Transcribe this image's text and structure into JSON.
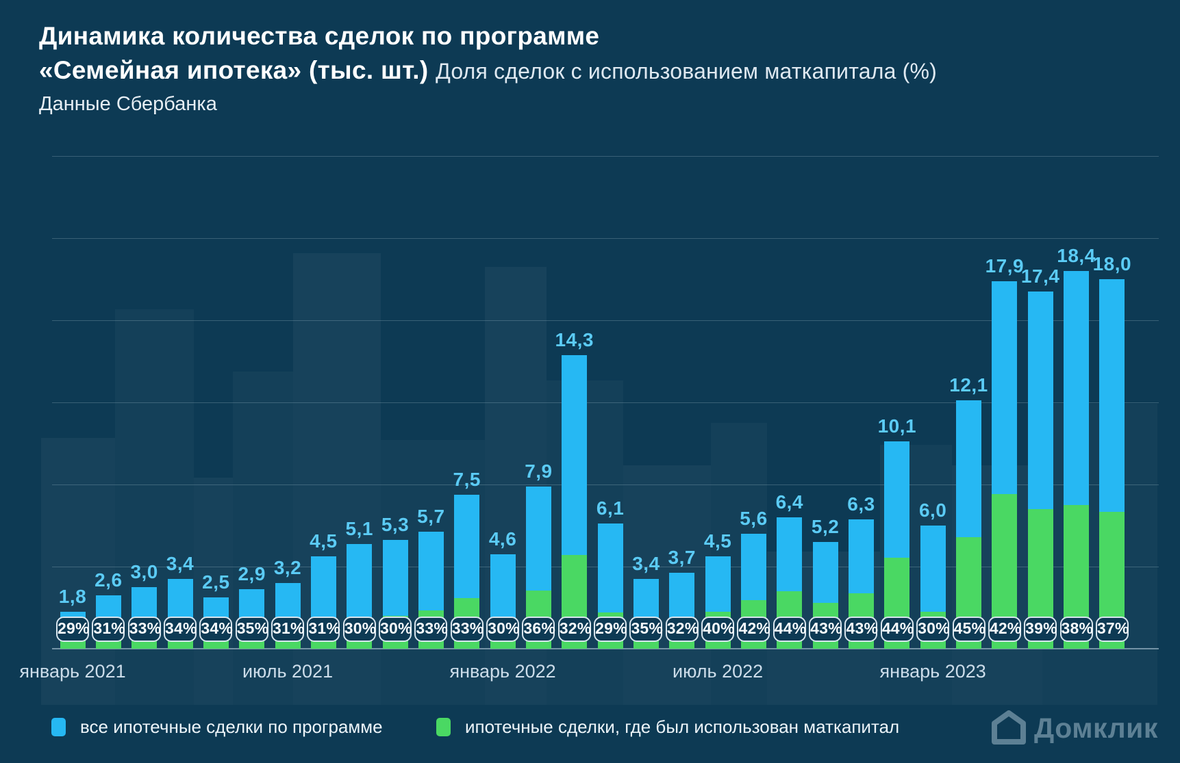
{
  "header": {
    "title_line1": "Динамика количества сделок по программе",
    "title_line2_bold": "«Семейная ипотека» (тыс. шт.)",
    "title_line2_regular": "Доля сделок с использованием маткапитала (%)",
    "subtitle": "Данные Сбербанка"
  },
  "chart_data": {
    "type": "bar",
    "stacked": true,
    "title": "Динамика количества сделок по программе «Семейная ипотека» (тыс. шт.)",
    "secondary_title": "Доля сделок с использованием маткапитала (%)",
    "source": "Данные Сбербанка",
    "ylim": [
      0,
      24
    ],
    "gridline_step": 4,
    "grid": true,
    "legend_position": "bottom",
    "unit": "тыс. шт.",
    "values": [
      1.8,
      2.6,
      3.0,
      3.4,
      2.5,
      2.9,
      3.2,
      4.5,
      5.1,
      5.3,
      5.7,
      7.5,
      4.6,
      7.9,
      14.3,
      6.1,
      3.4,
      3.7,
      4.5,
      5.6,
      6.4,
      5.2,
      6.3,
      10.1,
      6.0,
      12.1,
      17.9,
      17.4,
      18.4,
      18.0
    ],
    "value_labels": [
      "1,8",
      "2,6",
      "3,0",
      "3,4",
      "2,5",
      "2,9",
      "3,2",
      "4,5",
      "5,1",
      "5,3",
      "5,7",
      "7,5",
      "4,6",
      "7,9",
      "14,3",
      "6,1",
      "3,4",
      "3,7",
      "4,5",
      "5,6",
      "6,4",
      "5,2",
      "6,3",
      "10,1",
      "6,0",
      "12,1",
      "17,9",
      "17,4",
      "18,4",
      "18,0"
    ],
    "share_pct": [
      29,
      31,
      33,
      34,
      34,
      35,
      31,
      31,
      30,
      30,
      33,
      33,
      30,
      36,
      32,
      29,
      35,
      32,
      40,
      42,
      44,
      43,
      43,
      44,
      30,
      45,
      42,
      39,
      38,
      37
    ],
    "share_labels": [
      "29%",
      "31%",
      "33%",
      "34%",
      "34%",
      "35%",
      "31%",
      "31%",
      "30%",
      "30%",
      "33%",
      "33%",
      "30%",
      "36%",
      "32%",
      "29%",
      "35%",
      "32%",
      "40%",
      "42%",
      "44%",
      "43%",
      "43%",
      "44%",
      "30%",
      "45%",
      "42%",
      "39%",
      "38%",
      "37%"
    ],
    "x_axis_ticks": [
      {
        "index": 0,
        "label": "январь 2021"
      },
      {
        "index": 6,
        "label": "июль 2021"
      },
      {
        "index": 12,
        "label": "январь 2022"
      },
      {
        "index": 18,
        "label": "июль 2022"
      },
      {
        "index": 24,
        "label": "январь 2023"
      }
    ],
    "series": [
      {
        "name": "все ипотечные сделки по программе",
        "color": "#26b8f3",
        "role": "total"
      },
      {
        "name": "ипотечные сделки, где был использован маткапитал",
        "color": "#4ad863",
        "role": "share_of_total_from_share_pct"
      }
    ]
  },
  "legend": {
    "items": [
      {
        "label": "все ипотечные сделки по программе",
        "color": "#26b8f3"
      },
      {
        "label": "ипотечные сделки, где был использован маткапитал",
        "color": "#4ad863"
      }
    ]
  },
  "footer": {
    "brand": "Домклик"
  },
  "colors": {
    "background": "#0d3a54",
    "bar_total": "#26b8f3",
    "bar_matcapital": "#4ad863",
    "value_label": "#5bcbf5",
    "badge_border": "#d9e6ef",
    "badge_text": "#f6fafc",
    "brand": "#5d8094"
  }
}
